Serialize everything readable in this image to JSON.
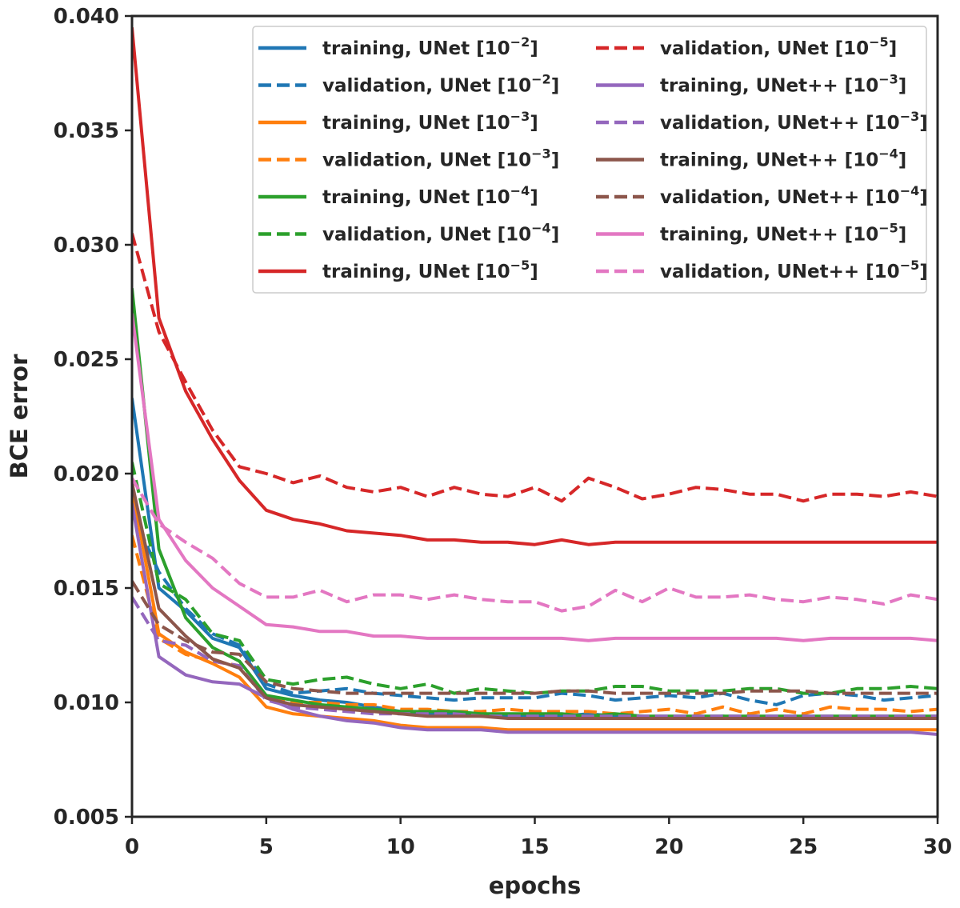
{
  "chart_data": {
    "type": "line",
    "title": "",
    "xlabel": "epochs",
    "ylabel": "BCE error",
    "xlim": [
      0,
      30
    ],
    "ylim": [
      0.005,
      0.04
    ],
    "xticks": [
      "0",
      "5",
      "10",
      "15",
      "20",
      "25",
      "30"
    ],
    "yticks": [
      "0.005",
      "0.010",
      "0.015",
      "0.020",
      "0.025",
      "0.030",
      "0.035",
      "0.040"
    ],
    "x": [
      0,
      1,
      2,
      3,
      4,
      5,
      6,
      7,
      8,
      9,
      10,
      11,
      12,
      13,
      14,
      15,
      16,
      17,
      18,
      19,
      20,
      21,
      22,
      23,
      24,
      25,
      26,
      27,
      28,
      29,
      30
    ],
    "legend_position": "top-right",
    "grid": false,
    "series": [
      {
        "name": "training, UNet",
        "lr": "10",
        "exp": "−2",
        "color": "#1f77b4",
        "style": "solid",
        "values": [
          0.0233,
          0.015,
          0.014,
          0.0128,
          0.0124,
          0.0106,
          0.0103,
          0.0101,
          0.01,
          0.0098,
          0.0096,
          0.0095,
          0.0095,
          0.0095,
          0.0094,
          0.0094,
          0.0094,
          0.0095,
          0.0094,
          0.0094,
          0.0093,
          0.0093,
          0.0094,
          0.0093,
          0.0093,
          0.0093,
          0.0093,
          0.0094,
          0.0093,
          0.0093,
          0.0093
        ]
      },
      {
        "name": "validation, UNet",
        "lr": "10",
        "exp": "−2",
        "color": "#1f77b4",
        "style": "dashed",
        "values": [
          0.0183,
          0.0157,
          0.0141,
          0.013,
          0.0125,
          0.0108,
          0.0104,
          0.0105,
          0.0106,
          0.0104,
          0.0103,
          0.0102,
          0.0101,
          0.0102,
          0.0102,
          0.0102,
          0.0104,
          0.0103,
          0.0101,
          0.0102,
          0.0103,
          0.0102,
          0.0104,
          0.0101,
          0.0099,
          0.0103,
          0.0104,
          0.0103,
          0.0101,
          0.0102,
          0.0103
        ]
      },
      {
        "name": "training, UNet",
        "lr": "10",
        "exp": "−3",
        "color": "#ff7f0e",
        "style": "solid",
        "values": [
          0.0194,
          0.013,
          0.0122,
          0.0117,
          0.0111,
          0.0098,
          0.0095,
          0.0094,
          0.0093,
          0.0092,
          0.009,
          0.0089,
          0.0089,
          0.0089,
          0.0088,
          0.0088,
          0.0088,
          0.0088,
          0.0088,
          0.0088,
          0.0088,
          0.0088,
          0.0088,
          0.0088,
          0.0088,
          0.0088,
          0.0088,
          0.0088,
          0.0088,
          0.0088,
          0.0088
        ]
      },
      {
        "name": "validation, UNet",
        "lr": "10",
        "exp": "−3",
        "color": "#ff7f0e",
        "style": "dashed",
        "values": [
          0.0173,
          0.0128,
          0.0121,
          0.0118,
          0.0116,
          0.0103,
          0.01,
          0.01,
          0.0099,
          0.0099,
          0.0097,
          0.0097,
          0.0096,
          0.0096,
          0.0097,
          0.0096,
          0.0096,
          0.0096,
          0.0095,
          0.0096,
          0.0097,
          0.0095,
          0.0098,
          0.0095,
          0.0097,
          0.0095,
          0.0098,
          0.0097,
          0.0097,
          0.0096,
          0.0097
        ]
      },
      {
        "name": "training, UNet",
        "lr": "10",
        "exp": "−4",
        "color": "#2ca02c",
        "style": "solid",
        "values": [
          0.0281,
          0.0167,
          0.0137,
          0.0124,
          0.0118,
          0.0103,
          0.0101,
          0.0099,
          0.0098,
          0.0097,
          0.0096,
          0.0096,
          0.0096,
          0.0095,
          0.0095,
          0.0095,
          0.0095,
          0.0094,
          0.0095,
          0.0094,
          0.0094,
          0.0094,
          0.0094,
          0.0094,
          0.0094,
          0.0094,
          0.0094,
          0.0094,
          0.0094,
          0.0094,
          0.0094
        ]
      },
      {
        "name": "validation, UNet",
        "lr": "10",
        "exp": "−4",
        "color": "#2ca02c",
        "style": "dashed",
        "values": [
          0.0205,
          0.0152,
          0.0145,
          0.013,
          0.0127,
          0.011,
          0.0108,
          0.011,
          0.0111,
          0.0108,
          0.0106,
          0.0108,
          0.0104,
          0.0106,
          0.0105,
          0.0104,
          0.0105,
          0.0105,
          0.0107,
          0.0107,
          0.0105,
          0.0105,
          0.0105,
          0.0106,
          0.0106,
          0.0104,
          0.0104,
          0.0106,
          0.0106,
          0.0107,
          0.0106
        ]
      },
      {
        "name": "training, UNet",
        "lr": "10",
        "exp": "−5",
        "color": "#d62728",
        "style": "solid",
        "values": [
          0.0395,
          0.0268,
          0.0236,
          0.0215,
          0.0197,
          0.0184,
          0.018,
          0.0178,
          0.0175,
          0.0174,
          0.0173,
          0.0171,
          0.0171,
          0.017,
          0.017,
          0.0169,
          0.0171,
          0.0169,
          0.017,
          0.017,
          0.017,
          0.017,
          0.017,
          0.017,
          0.017,
          0.017,
          0.017,
          0.017,
          0.017,
          0.017,
          0.017
        ]
      },
      {
        "name": "validation, UNet",
        "lr": "10",
        "exp": "−5",
        "color": "#d62728",
        "style": "dashed",
        "values": [
          0.0305,
          0.0262,
          0.024,
          0.0219,
          0.0203,
          0.02,
          0.0196,
          0.0199,
          0.0194,
          0.0192,
          0.0194,
          0.019,
          0.0194,
          0.0191,
          0.019,
          0.0194,
          0.0188,
          0.0198,
          0.0194,
          0.0189,
          0.0191,
          0.0194,
          0.0193,
          0.0191,
          0.0191,
          0.0188,
          0.0191,
          0.0191,
          0.019,
          0.0192,
          0.019
        ]
      },
      {
        "name": "training, UNet++",
        "lr": "10",
        "exp": "−3",
        "color": "#9467bd",
        "style": "solid",
        "values": [
          0.0187,
          0.012,
          0.0112,
          0.0109,
          0.0108,
          0.0102,
          0.0097,
          0.0094,
          0.0092,
          0.0091,
          0.0089,
          0.0088,
          0.0088,
          0.0088,
          0.0087,
          0.0087,
          0.0087,
          0.0087,
          0.0087,
          0.0087,
          0.0087,
          0.0087,
          0.0087,
          0.0087,
          0.0087,
          0.0087,
          0.0087,
          0.0087,
          0.0087,
          0.0087,
          0.0086
        ]
      },
      {
        "name": "validation, UNet++",
        "lr": "10",
        "exp": "−3",
        "color": "#9467bd",
        "style": "dashed",
        "values": [
          0.0146,
          0.0127,
          0.0125,
          0.0118,
          0.0116,
          0.0101,
          0.0098,
          0.0097,
          0.0096,
          0.0095,
          0.0095,
          0.0095,
          0.0095,
          0.0094,
          0.0094,
          0.0094,
          0.0094,
          0.0094,
          0.0094,
          0.0094,
          0.0094,
          0.0094,
          0.0094,
          0.0094,
          0.0094,
          0.0094,
          0.0094,
          0.0094,
          0.0094,
          0.0094,
          0.0094
        ]
      },
      {
        "name": "training, UNet++",
        "lr": "10",
        "exp": "−4",
        "color": "#8c564b",
        "style": "solid",
        "values": [
          0.0196,
          0.0141,
          0.0129,
          0.0119,
          0.0115,
          0.0102,
          0.0099,
          0.0098,
          0.0097,
          0.0096,
          0.0095,
          0.0094,
          0.0094,
          0.0094,
          0.0093,
          0.0093,
          0.0093,
          0.0093,
          0.0093,
          0.0093,
          0.0093,
          0.0093,
          0.0093,
          0.0093,
          0.0093,
          0.0093,
          0.0093,
          0.0093,
          0.0093,
          0.0093,
          0.0093
        ]
      },
      {
        "name": "validation, UNet++",
        "lr": "10",
        "exp": "−4",
        "color": "#8c564b",
        "style": "dashed",
        "values": [
          0.0153,
          0.0134,
          0.0127,
          0.0122,
          0.0121,
          0.0109,
          0.0106,
          0.0105,
          0.0104,
          0.0104,
          0.0104,
          0.0104,
          0.0104,
          0.0104,
          0.0104,
          0.0104,
          0.0105,
          0.0105,
          0.0104,
          0.0104,
          0.0104,
          0.0104,
          0.0104,
          0.0105,
          0.0105,
          0.0105,
          0.0104,
          0.0104,
          0.0104,
          0.0104,
          0.0104
        ]
      },
      {
        "name": "training, UNet++",
        "lr": "10",
        "exp": "−5",
        "color": "#e377c2",
        "style": "solid",
        "values": [
          0.027,
          0.018,
          0.0162,
          0.015,
          0.0142,
          0.0134,
          0.0133,
          0.0131,
          0.0131,
          0.0129,
          0.0129,
          0.0128,
          0.0128,
          0.0128,
          0.0128,
          0.0128,
          0.0128,
          0.0127,
          0.0128,
          0.0128,
          0.0128,
          0.0128,
          0.0128,
          0.0128,
          0.0128,
          0.0127,
          0.0128,
          0.0128,
          0.0128,
          0.0128,
          0.0127
        ]
      },
      {
        "name": "validation, UNet++",
        "lr": "10",
        "exp": "−5",
        "color": "#e377c2",
        "style": "dashed",
        "values": [
          0.0198,
          0.0178,
          0.017,
          0.0163,
          0.0152,
          0.0146,
          0.0146,
          0.0149,
          0.0144,
          0.0147,
          0.0147,
          0.0145,
          0.0147,
          0.0145,
          0.0144,
          0.0144,
          0.014,
          0.0142,
          0.0149,
          0.0144,
          0.015,
          0.0146,
          0.0146,
          0.0147,
          0.0145,
          0.0144,
          0.0146,
          0.0145,
          0.0143,
          0.0147,
          0.0145
        ]
      }
    ]
  }
}
